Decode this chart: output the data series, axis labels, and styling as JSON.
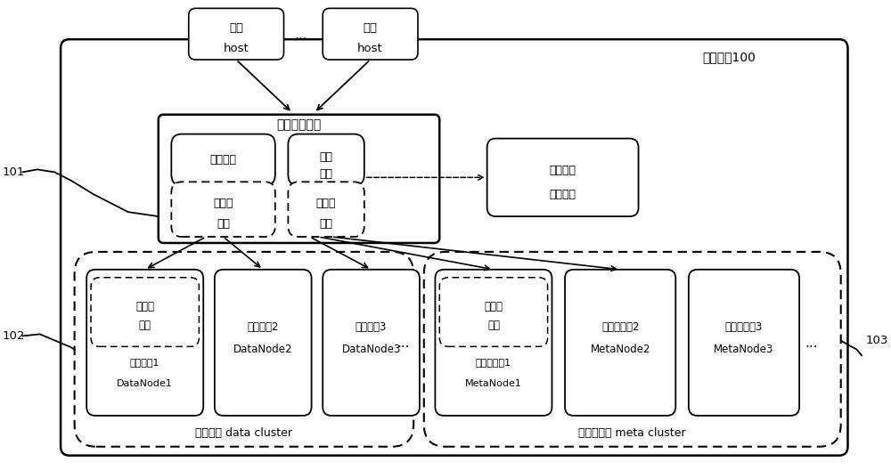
{
  "bg_color": "#ffffff",
  "storage_system_label": "存储系统100",
  "label_101": "101",
  "label_102": "102",
  "label_103": "103",
  "host1_lines": [
    "主机",
    "host"
  ],
  "host2_lines": [
    "主机",
    "host"
  ],
  "dots_between_hosts": "...",
  "network_device_label": "网络接口设备",
  "redundancy_info": "冗余信息",
  "super_meta": [
    "超元",
    "数据"
  ],
  "client1": [
    "第一客",
    "户端"
  ],
  "client2": [
    "第二客",
    "户端"
  ],
  "backup_network": [
    "副本网络",
    "接口设备"
  ],
  "data_cluster_label": "数据集群 data cluster",
  "meta_cluster_label": "元数据集群 meta cluster",
  "space_manager1": [
    "空间管",
    "理器",
    "数据节点1",
    "DataNode1"
  ],
  "data_node2": [
    "数据节点2",
    "DataNode2"
  ],
  "data_node3": [
    "数据节点3",
    "DataNode3"
  ],
  "space_manager2": [
    "空间管",
    "理器",
    "元数据节点1",
    "MetaNode1"
  ],
  "meta_node2": [
    "元数据节点2",
    "MetaNode2"
  ],
  "meta_node3": [
    "元数据节点3",
    "MetaNode3"
  ],
  "dots_data": "...",
  "dots_meta": "..."
}
